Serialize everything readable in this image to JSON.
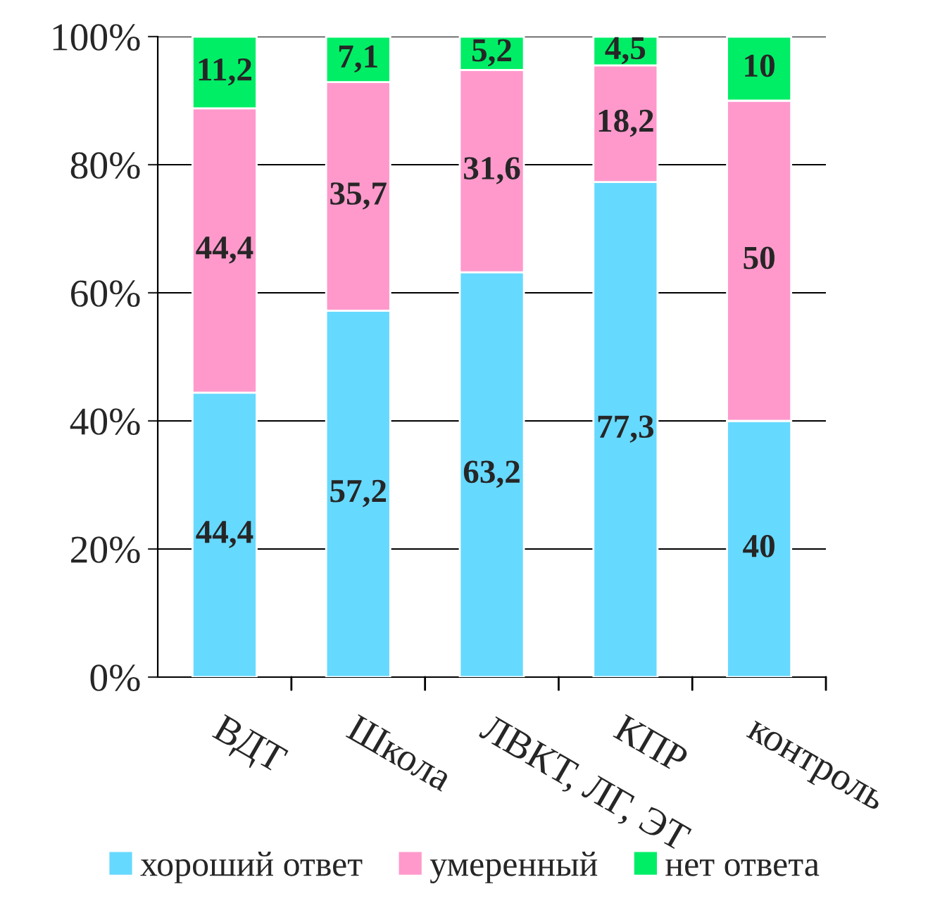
{
  "chart_data": {
    "type": "bar",
    "stacked": true,
    "categories": [
      "ВДТ",
      "Школа",
      "ЛВКТ, ЛГ, ЭТ",
      "КПР",
      "контроль"
    ],
    "series": [
      {
        "name": "хороший ответ",
        "color": "#66d9ff",
        "values": [
          44.4,
          57.2,
          63.2,
          77.3,
          40
        ],
        "value_labels": [
          "44,4",
          "57,2",
          "63,2",
          "77,3",
          "40"
        ]
      },
      {
        "name": "умеренный",
        "color": "#ff99cc",
        "values": [
          44.4,
          35.7,
          31.6,
          18.2,
          50
        ],
        "value_labels": [
          "44,4",
          "35,7",
          "31,6",
          "18,2",
          "50"
        ]
      },
      {
        "name": "нет ответа",
        "color": "#00ee66",
        "values": [
          11.2,
          7.1,
          5.2,
          4.5,
          10
        ],
        "value_labels": [
          "11,2",
          "7,1",
          "5,2",
          "4,5",
          "10"
        ]
      }
    ],
    "ylim": [
      0,
      100
    ],
    "yticks": [
      {
        "value": 0,
        "label": "0%"
      },
      {
        "value": 20,
        "label": "20%"
      },
      {
        "value": 40,
        "label": "40%"
      },
      {
        "value": 60,
        "label": "60%"
      },
      {
        "value": 80,
        "label": "80%"
      },
      {
        "value": 100,
        "label": "100%"
      }
    ],
    "grid": "y",
    "legend": "bottom"
  }
}
